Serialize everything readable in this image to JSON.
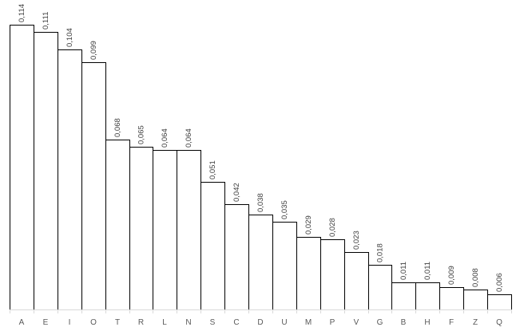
{
  "chart_data": {
    "type": "bar",
    "title": "",
    "xlabel": "",
    "ylabel": "",
    "categories": [
      "A",
      "E",
      "I",
      "O",
      "T",
      "R",
      "L",
      "N",
      "S",
      "C",
      "D",
      "U",
      "M",
      "P",
      "V",
      "G",
      "B",
      "H",
      "F",
      "Z",
      "Q"
    ],
    "values": [
      0.114,
      0.111,
      0.104,
      0.099,
      0.068,
      0.065,
      0.064,
      0.064,
      0.051,
      0.042,
      0.038,
      0.035,
      0.029,
      0.028,
      0.023,
      0.018,
      0.011,
      0.011,
      0.009,
      0.008,
      0.006
    ],
    "value_labels": [
      "0,114",
      "0,111",
      "0,104",
      "0,099",
      "0,068",
      "0,065",
      "0,064",
      "0,064",
      "0,051",
      "0,042",
      "0,038",
      "0,035",
      "0,029",
      "0,028",
      "0,023",
      "0,018",
      "0,011",
      "0,011",
      "0,009",
      "0,008",
      "0,006"
    ],
    "ylim": [
      0,
      0.114
    ],
    "grid": false,
    "legend": "none",
    "bar_fill": "#ffffff",
    "bar_stroke": "#000000"
  }
}
